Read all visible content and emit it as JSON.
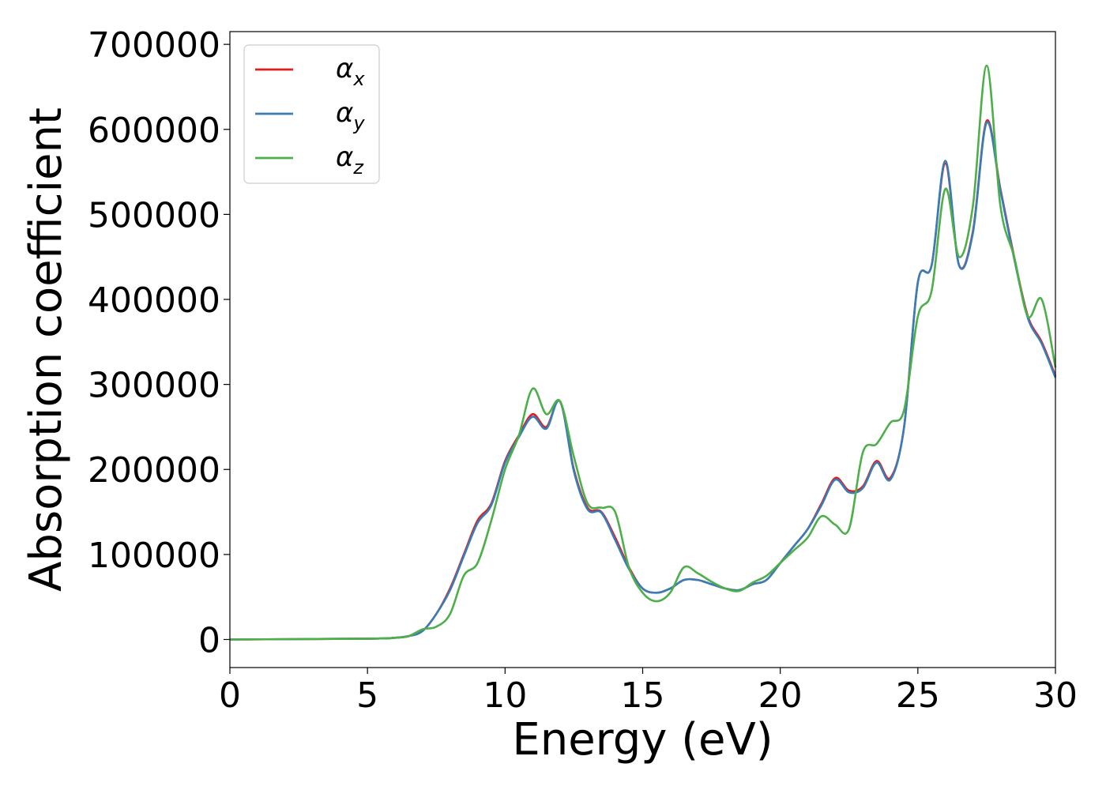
{
  "chart_data": {
    "type": "line",
    "xlabel": "Energy (eV)",
    "ylabel": "Absorption coefficient",
    "xlim": [
      0,
      30
    ],
    "ylim": [
      -33000,
      715000
    ],
    "xticks": [
      "0",
      "5",
      "10",
      "15",
      "20",
      "25",
      "30"
    ],
    "yticks": [
      "0",
      "100000",
      "200000",
      "300000",
      "400000",
      "500000",
      "600000",
      "700000"
    ],
    "grid": false,
    "legend_position": "top-left",
    "series": [
      {
        "name": "αx",
        "symbol": "α",
        "subscript": "x",
        "color": "#e41a1c",
        "x": [
          0,
          5,
          6,
          6.5,
          7,
          7.5,
          8,
          8.5,
          9,
          9.5,
          10,
          10.5,
          11,
          11.5,
          12,
          12.5,
          13,
          13.5,
          14,
          14.5,
          15,
          15.5,
          16,
          16.5,
          17,
          17.5,
          18,
          18.5,
          19,
          19.5,
          20,
          20.5,
          21,
          21.5,
          22,
          22.5,
          23,
          23.5,
          24,
          24.5,
          25,
          25.5,
          26,
          26.5,
          27,
          27.5,
          28,
          28.5,
          29,
          29.5,
          30
        ],
        "y": [
          0,
          1000,
          2000,
          4000,
          10000,
          30000,
          60000,
          100000,
          140000,
          160000,
          210000,
          240000,
          265000,
          250000,
          280000,
          200000,
          155000,
          150000,
          120000,
          85000,
          60000,
          55000,
          60000,
          70000,
          70000,
          65000,
          60000,
          58000,
          65000,
          70000,
          90000,
          110000,
          130000,
          160000,
          190000,
          175000,
          180000,
          210000,
          190000,
          250000,
          420000,
          440000,
          560000,
          440000,
          480000,
          610000,
          530000,
          450000,
          380000,
          350000,
          310000
        ]
      },
      {
        "name": "αy",
        "symbol": "α",
        "subscript": "y",
        "color": "#377eb8",
        "x": [
          0,
          5,
          6,
          6.5,
          7,
          7.5,
          8,
          8.5,
          9,
          9.5,
          10,
          10.5,
          11,
          11.5,
          12,
          12.5,
          13,
          13.5,
          14,
          14.5,
          15,
          15.5,
          16,
          16.5,
          17,
          17.5,
          18,
          18.5,
          19,
          19.5,
          20,
          20.5,
          21,
          21.5,
          22,
          22.5,
          23,
          23.5,
          24,
          24.5,
          25,
          25.5,
          26,
          26.5,
          27,
          27.5,
          28,
          28.5,
          29,
          29.5,
          30
        ],
        "y": [
          0,
          1000,
          2000,
          4000,
          10000,
          30000,
          58000,
          98000,
          137000,
          158000,
          208000,
          238000,
          262000,
          248000,
          280000,
          198000,
          153000,
          149000,
          117000,
          83000,
          60000,
          55000,
          60000,
          70000,
          70000,
          65000,
          60000,
          58000,
          65000,
          70000,
          90000,
          110000,
          130000,
          158000,
          188000,
          173000,
          178000,
          208000,
          188000,
          250000,
          420000,
          440000,
          563000,
          440000,
          478000,
          608000,
          528000,
          448000,
          378000,
          348000,
          308000
        ]
      },
      {
        "name": "αz",
        "symbol": "α",
        "subscript": "z",
        "color": "#4daf4a",
        "x": [
          0,
          5,
          6,
          6.5,
          7,
          7.5,
          8,
          8.5,
          9,
          9.5,
          10,
          10.5,
          11,
          11.5,
          12,
          12.5,
          13,
          13.5,
          14,
          14.5,
          15,
          15.5,
          16,
          16.5,
          17,
          17.5,
          18,
          18.5,
          19,
          19.5,
          20,
          20.5,
          21,
          21.5,
          22,
          22.5,
          23,
          23.5,
          24,
          24.5,
          25,
          25.5,
          26,
          26.5,
          27,
          27.5,
          28,
          28.5,
          29,
          29.5,
          30
        ],
        "y": [
          0,
          1000,
          2000,
          4000,
          12000,
          15000,
          30000,
          75000,
          90000,
          140000,
          200000,
          240000,
          295000,
          265000,
          280000,
          215000,
          160000,
          155000,
          150000,
          85000,
          55000,
          45000,
          55000,
          85000,
          78000,
          68000,
          60000,
          57000,
          67000,
          75000,
          90000,
          105000,
          120000,
          145000,
          135000,
          130000,
          220000,
          230000,
          255000,
          270000,
          380000,
          410000,
          530000,
          450000,
          510000,
          675000,
          510000,
          450000,
          380000,
          400000,
          320000
        ]
      }
    ]
  }
}
